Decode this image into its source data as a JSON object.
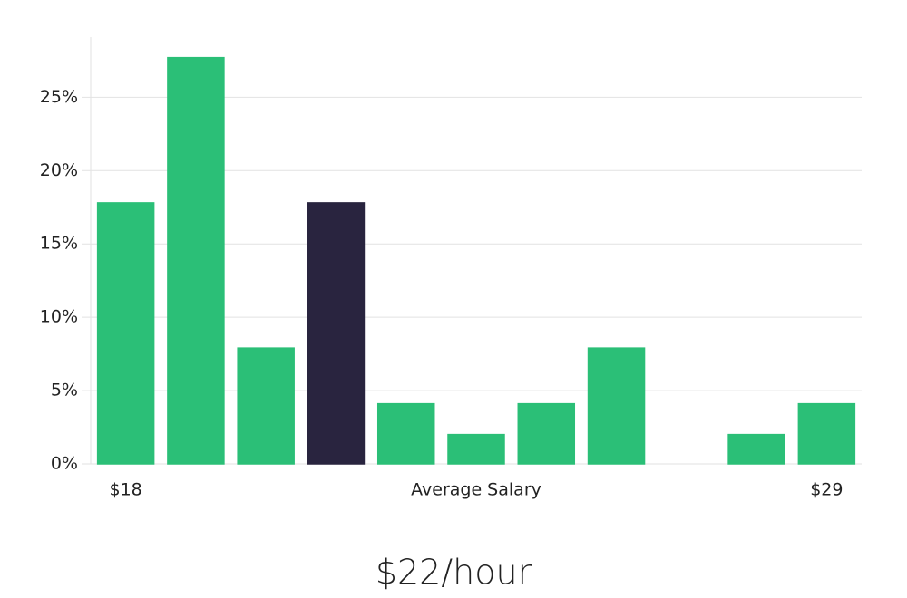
{
  "chart_data": {
    "type": "bar",
    "subtitle": "$22/hour",
    "x_label": "Average Salary",
    "categories": [
      "$18",
      null,
      null,
      null,
      null,
      null,
      null,
      null,
      null,
      null,
      "$29"
    ],
    "values": [
      17.8,
      27.7,
      7.9,
      17.8,
      4.1,
      2.0,
      4.1,
      7.9,
      0,
      2.0,
      4.1
    ],
    "colors": [
      "#2bbf77",
      "#2bbf77",
      "#2bbf77",
      "#29243f",
      "#2bbf77",
      "#2bbf77",
      "#2bbf77",
      "#2bbf77",
      "#2bbf77",
      "#2bbf77",
      "#2bbf77"
    ],
    "ylim": [
      0,
      29.1
    ],
    "yticks": [
      {
        "value": 0,
        "label": "0%"
      },
      {
        "value": 5,
        "label": "5%"
      },
      {
        "value": 10,
        "label": "10%"
      },
      {
        "value": 15,
        "label": "15%"
      },
      {
        "value": 20,
        "label": "20%"
      },
      {
        "value": 25,
        "label": "25%"
      }
    ],
    "grid": true
  }
}
